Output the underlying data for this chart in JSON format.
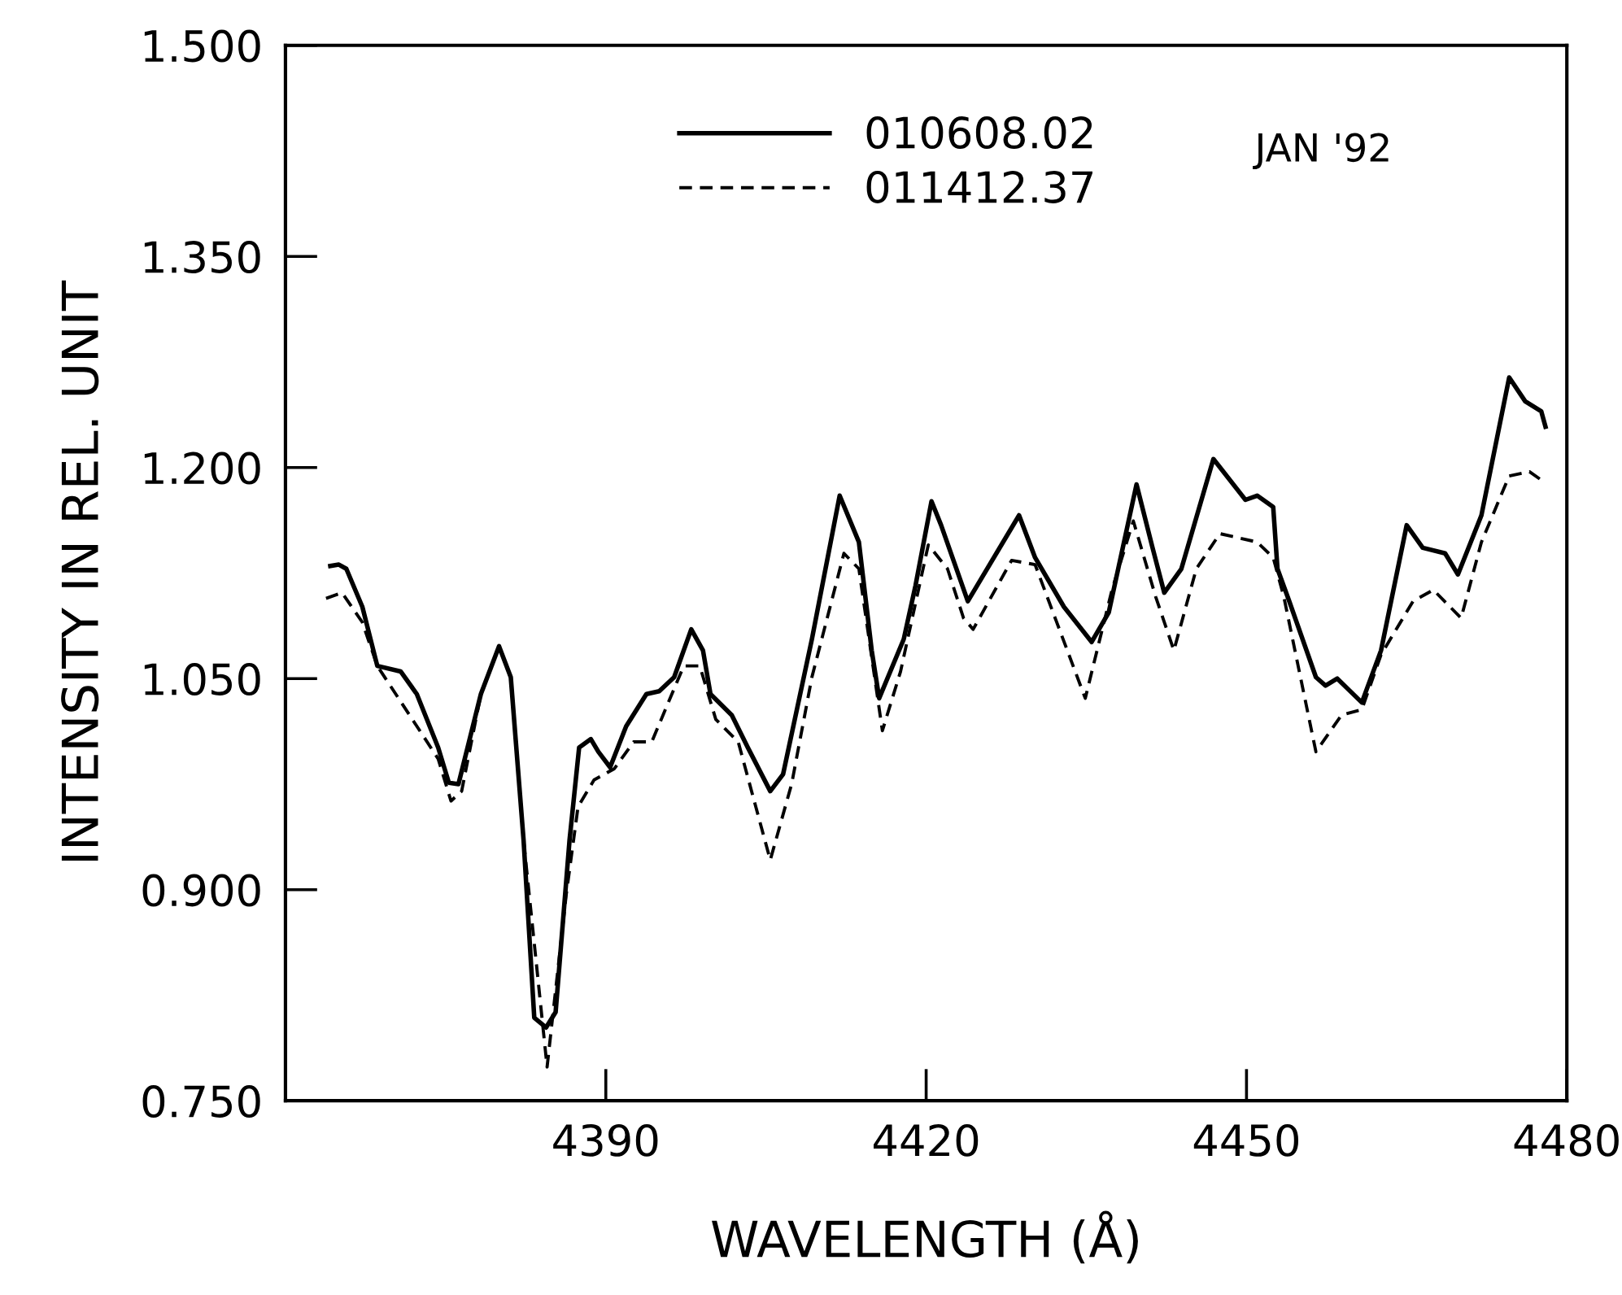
{
  "chart_data": {
    "type": "line",
    "xlabel": "WAVELENGTH (Å)",
    "ylabel": "INTENSITY IN REL. UNIT",
    "annotations": [
      "JAN '92"
    ],
    "xlim": [
      4360,
      4480
    ],
    "ylim": [
      0.75,
      1.5
    ],
    "xticks": [
      4390,
      4420,
      4450,
      4480
    ],
    "yticks": [
      {
        "value": 0.75,
        "label": "0.750"
      },
      {
        "value": 0.9,
        "label": "0.900"
      },
      {
        "value": 1.05,
        "label": "1.050"
      },
      {
        "value": 1.2,
        "label": "1.200"
      },
      {
        "value": 1.35,
        "label": "1.350"
      },
      {
        "value": 1.5,
        "label": "1.500"
      }
    ],
    "grid": false,
    "legend": "top",
    "series": [
      {
        "name": "010608.02",
        "color": "#000000",
        "line_style": "solid",
        "x": [
          4364.2,
          4365.0,
          4365.7,
          4367.2,
          4368.6,
          4370.8,
          4372.3,
          4374.3,
          4375.3,
          4376.2,
          4378.3,
          4380.0,
          4381.1,
          4382.3,
          4383.3,
          4384.4,
          4385.3,
          4386.6,
          4387.5,
          4388.6,
          4389.3,
          4390.4,
          4391.9,
          4393.8,
          4395.0,
          4396.4,
          4398.0,
          4399.1,
          4399.8,
          4401.8,
          4403.3,
          4405.4,
          4406.6,
          4409.3,
          4411.9,
          4413.7,
          4414.9,
          4415.6,
          4417.9,
          4419.0,
          4420.5,
          4421.4,
          4423.9,
          4428.7,
          4430.2,
          4432.9,
          4435.5,
          4437.1,
          4439.7,
          4441.2,
          4442.3,
          4443.9,
          4446.9,
          4449.9,
          4451.0,
          4452.5,
          4452.9,
          4454.0,
          4456.5,
          4457.4,
          4458.5,
          4460.8,
          4462.6,
          4465.0,
          4466.5,
          4468.6,
          4469.8,
          4472.0,
          4474.6,
          4476.1,
          4477.6,
          4478.0
        ],
        "values": [
          1.13,
          1.131,
          1.128,
          1.101,
          1.059,
          1.055,
          1.039,
          1.001,
          0.976,
          0.975,
          1.039,
          1.073,
          1.051,
          0.935,
          0.809,
          0.802,
          0.813,
          0.935,
          1.001,
          1.007,
          0.998,
          0.987,
          1.016,
          1.039,
          1.041,
          1.051,
          1.085,
          1.07,
          1.039,
          1.024,
          1.001,
          0.97,
          0.982,
          1.078,
          1.18,
          1.147,
          1.07,
          1.036,
          1.078,
          1.116,
          1.176,
          1.159,
          1.105,
          1.166,
          1.136,
          1.101,
          1.076,
          1.097,
          1.188,
          1.143,
          1.111,
          1.128,
          1.206,
          1.177,
          1.18,
          1.172,
          1.128,
          1.105,
          1.051,
          1.045,
          1.05,
          1.033,
          1.07,
          1.159,
          1.143,
          1.139,
          1.124,
          1.166,
          1.264,
          1.247,
          1.24,
          1.229
        ]
      },
      {
        "name": "011412.37",
        "color": "#000000",
        "line_style": "dashed",
        "x": [
          4363.8,
          4365.3,
          4367.2,
          4368.6,
          4374.3,
          4375.5,
          4376.5,
          4378.3,
          4380.0,
          4381.1,
          4382.3,
          4384.5,
          4386.3,
          4387.4,
          4388.9,
          4390.8,
          4392.6,
          4394.3,
          4397.3,
          4398.8,
          4400.3,
          4402.4,
          4405.4,
          4407.4,
          4409.3,
          4412.3,
          4413.7,
          4415.9,
          4417.6,
          4420.2,
          4422.0,
          4423.5,
          4424.4,
          4428.0,
          4430.2,
          4434.9,
          4437.4,
          4439.4,
          4441.5,
          4443.2,
          4445.3,
          4447.5,
          4451.0,
          4452.5,
          4453.5,
          4456.5,
          4458.9,
          4460.8,
          4462.6,
          4465.6,
          4467.5,
          4470.1,
          4472.0,
          4474.6,
          4476.5,
          4478.0
        ],
        "values": [
          1.107,
          1.111,
          1.09,
          1.059,
          0.993,
          0.963,
          0.97,
          1.039,
          1.073,
          1.051,
          0.935,
          0.774,
          0.897,
          0.959,
          0.978,
          0.986,
          1.005,
          1.005,
          1.059,
          1.059,
          1.021,
          1.005,
          0.921,
          0.975,
          1.051,
          1.139,
          1.128,
          1.013,
          1.055,
          1.145,
          1.128,
          1.093,
          1.085,
          1.134,
          1.131,
          1.036,
          1.113,
          1.162,
          1.108,
          1.07,
          1.128,
          1.153,
          1.147,
          1.136,
          1.108,
          0.998,
          1.024,
          1.028,
          1.067,
          1.105,
          1.113,
          1.093,
          1.147,
          1.194,
          1.197,
          1.189
        ]
      }
    ]
  }
}
